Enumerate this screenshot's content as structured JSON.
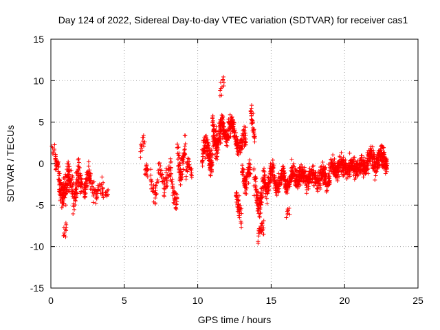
{
  "chart_data": {
    "type": "scatter",
    "title": "Day 124 of 2022, Sidereal Day-to-day VTEC variation (SDTVAR) for receiver cas1",
    "xlabel": "GPS time / hours",
    "ylabel": "SDTVAR / TECUs",
    "xlim": [
      0,
      25
    ],
    "ylim": [
      -15,
      15
    ],
    "xticks": [
      0,
      5,
      10,
      15,
      20,
      25
    ],
    "yticks": [
      -15,
      -10,
      -5,
      0,
      5,
      10,
      15
    ],
    "grid": true,
    "marker": "plus",
    "color": "#ff0000",
    "segments": [
      {
        "x0": 0.05,
        "x1": 0.3,
        "center": 3.0,
        "amp": 1.8,
        "noise": 0.8,
        "n": 8
      },
      {
        "x0": 0.3,
        "x1": 0.5,
        "center": 0.5,
        "amp": 1.5,
        "noise": 1.0,
        "n": 25
      },
      {
        "x0": 0.5,
        "x1": 1.0,
        "center": -2.5,
        "amp": 2.5,
        "noise": 2.0,
        "n": 90
      },
      {
        "x0": 0.85,
        "x1": 1.05,
        "center": -8.5,
        "amp": 0.8,
        "noise": 0.6,
        "n": 10
      },
      {
        "x0": 1.0,
        "x1": 2.0,
        "center": -3.0,
        "amp": 2.5,
        "noise": 2.5,
        "n": 140
      },
      {
        "x0": 2.0,
        "x1": 3.0,
        "center": -2.5,
        "amp": 1.5,
        "noise": 1.5,
        "n": 90
      },
      {
        "x0": 3.0,
        "x1": 3.9,
        "center": -3.5,
        "amp": 1.0,
        "noise": 1.0,
        "n": 40
      },
      {
        "x0": 6.1,
        "x1": 6.4,
        "center": 1.5,
        "amp": 2.0,
        "noise": 1.2,
        "n": 15
      },
      {
        "x0": 6.4,
        "x1": 6.6,
        "center": -1.0,
        "amp": 0.8,
        "noise": 0.6,
        "n": 18
      },
      {
        "x0": 6.8,
        "x1": 7.3,
        "center": -2.5,
        "amp": 1.5,
        "noise": 1.5,
        "n": 30
      },
      {
        "x0": 7.3,
        "x1": 8.2,
        "center": -2.0,
        "amp": 1.5,
        "noise": 1.5,
        "n": 60
      },
      {
        "x0": 8.2,
        "x1": 8.6,
        "center": -3.0,
        "amp": 2.0,
        "noise": 1.5,
        "n": 35
      },
      {
        "x0": 8.6,
        "x1": 9.2,
        "center": 0.5,
        "amp": 3.0,
        "noise": 2.0,
        "n": 70
      },
      {
        "x0": 9.2,
        "x1": 9.6,
        "center": -1.0,
        "amp": 1.5,
        "noise": 1.0,
        "n": 30
      },
      {
        "x0": 10.3,
        "x1": 11.0,
        "center": 1.0,
        "amp": 2.0,
        "noise": 1.5,
        "n": 120
      },
      {
        "x0": 11.0,
        "x1": 11.6,
        "center": 3.5,
        "amp": 2.5,
        "noise": 2.0,
        "n": 130
      },
      {
        "x0": 11.5,
        "x1": 11.8,
        "center": 9.0,
        "amp": 1.5,
        "noise": 1.0,
        "n": 12
      },
      {
        "x0": 11.6,
        "x1": 12.5,
        "center": 4.0,
        "amp": 1.5,
        "noise": 1.2,
        "n": 140
      },
      {
        "x0": 12.5,
        "x1": 13.3,
        "center": 2.5,
        "amp": 1.5,
        "noise": 1.2,
        "n": 90
      },
      {
        "x0": 12.6,
        "x1": 13.0,
        "center": -5.0,
        "amp": 2.0,
        "noise": 1.5,
        "n": 40
      },
      {
        "x0": 13.0,
        "x1": 13.6,
        "center": -1.5,
        "amp": 2.0,
        "noise": 1.5,
        "n": 80
      },
      {
        "x0": 13.6,
        "x1": 13.9,
        "center": 5.0,
        "amp": 2.5,
        "noise": 1.5,
        "n": 35
      },
      {
        "x0": 13.8,
        "x1": 14.6,
        "center": -3.5,
        "amp": 3.0,
        "noise": 2.0,
        "n": 110
      },
      {
        "x0": 14.1,
        "x1": 14.5,
        "center": -8.5,
        "amp": 1.2,
        "noise": 0.8,
        "n": 25
      },
      {
        "x0": 14.6,
        "x1": 15.5,
        "center": -2.0,
        "amp": 2.0,
        "noise": 1.5,
        "n": 120
      },
      {
        "x0": 15.5,
        "x1": 16.5,
        "center": -2.0,
        "amp": 1.5,
        "noise": 1.2,
        "n": 140
      },
      {
        "x0": 16.0,
        "x1": 16.3,
        "center": -6.0,
        "amp": 0.4,
        "noise": 0.3,
        "n": 8
      },
      {
        "x0": 16.5,
        "x1": 19.0,
        "center": -1.5,
        "amp": 0.8,
        "noise": 1.0,
        "n": 340
      },
      {
        "x0": 19.0,
        "x1": 21.5,
        "center": -0.5,
        "amp": 0.8,
        "noise": 0.9,
        "n": 340
      },
      {
        "x0": 21.5,
        "x1": 22.9,
        "center": 0.3,
        "amp": 1.2,
        "noise": 1.2,
        "n": 220
      }
    ]
  }
}
